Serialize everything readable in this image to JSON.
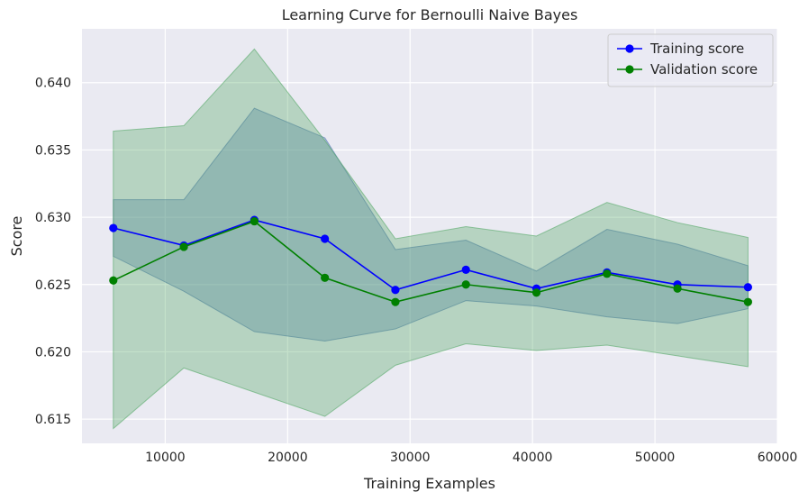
{
  "chart_data": {
    "type": "line",
    "title": "Learning Curve for Bernoulli Naive Bayes",
    "xlabel": "Training Examples",
    "ylabel": "Score",
    "xlim": [
      3200,
      60000
    ],
    "ylim": [
      0.6132,
      0.644
    ],
    "xticks": [
      10000,
      20000,
      30000,
      40000,
      50000,
      60000
    ],
    "yticks": [
      0.615,
      0.62,
      0.625,
      0.63,
      0.635,
      0.64
    ],
    "grid": true,
    "legend_position": "top-right",
    "x": [
      5760,
      11520,
      17280,
      23040,
      28800,
      34560,
      40320,
      46080,
      51840,
      57600
    ],
    "series": [
      {
        "name": "Training score",
        "color": "#0000ff",
        "band_color": "#4c72b0",
        "values": [
          0.6292,
          0.6279,
          0.6298,
          0.6284,
          0.6246,
          0.6261,
          0.6247,
          0.6259,
          0.625,
          0.6248
        ],
        "band_upper": [
          0.6313,
          0.6313,
          0.6381,
          0.6359,
          0.6276,
          0.6283,
          0.626,
          0.6291,
          0.628,
          0.6264
        ],
        "band_lower": [
          0.6271,
          0.6245,
          0.6215,
          0.6208,
          0.6217,
          0.6238,
          0.6234,
          0.6226,
          0.6221,
          0.6232
        ]
      },
      {
        "name": "Validation score",
        "color": "#008000",
        "band_color": "#55a868",
        "values": [
          0.6253,
          0.6278,
          0.6297,
          0.6255,
          0.6237,
          0.625,
          0.6244,
          0.6258,
          0.6247,
          0.6237
        ],
        "band_upper": [
          0.6364,
          0.6368,
          0.6425,
          0.6357,
          0.6284,
          0.6293,
          0.6286,
          0.6311,
          0.6296,
          0.6285
        ],
        "band_lower": [
          0.6143,
          0.6188,
          0.617,
          0.6152,
          0.619,
          0.6206,
          0.6201,
          0.6205,
          0.6197,
          0.6189
        ]
      }
    ]
  }
}
